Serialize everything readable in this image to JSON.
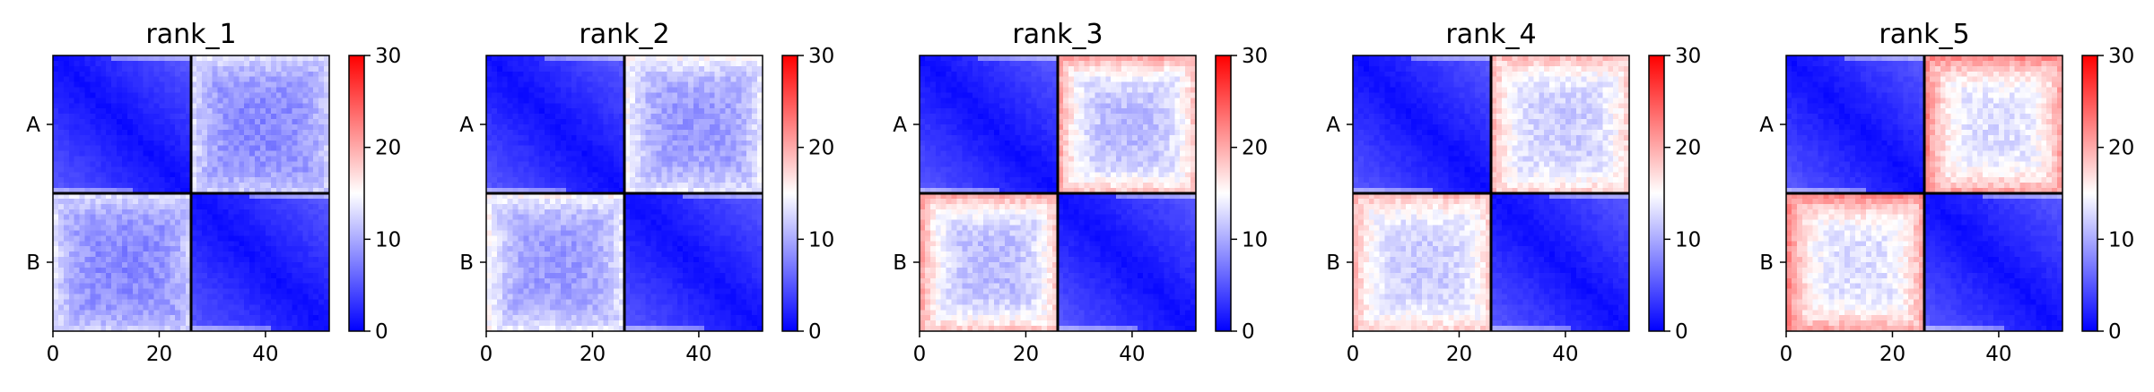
{
  "chart_data": [
    {
      "type": "heatmap",
      "title": "rank_1",
      "x_ticks": [
        0,
        20,
        40
      ],
      "y_ticks": [
        "A",
        "B"
      ],
      "x_range": [
        0,
        52
      ],
      "chain_boundary": 26,
      "colorbar": {
        "min": 0,
        "max": 30,
        "ticks": [
          0,
          10,
          20,
          30
        ],
        "colors": [
          "#0000ff",
          "#ffffff",
          "#ff0000"
        ]
      },
      "mean_intra_chain_error": 3,
      "mean_inter_chain_error": 8,
      "edge_inter_chain_error": 13
    },
    {
      "type": "heatmap",
      "title": "rank_2",
      "x_ticks": [
        0,
        20,
        40
      ],
      "y_ticks": [
        "A",
        "B"
      ],
      "x_range": [
        0,
        52
      ],
      "chain_boundary": 26,
      "colorbar": {
        "min": 0,
        "max": 30,
        "ticks": [
          0,
          10,
          20,
          30
        ],
        "colors": [
          "#0000ff",
          "#ffffff",
          "#ff0000"
        ]
      },
      "mean_intra_chain_error": 3,
      "mean_inter_chain_error": 9,
      "edge_inter_chain_error": 15
    },
    {
      "type": "heatmap",
      "title": "rank_3",
      "x_ticks": [
        0,
        20,
        40
      ],
      "y_ticks": [
        "A",
        "B"
      ],
      "x_range": [
        0,
        52
      ],
      "chain_boundary": 26,
      "colorbar": {
        "min": 0,
        "max": 30,
        "ticks": [
          0,
          10,
          20,
          30
        ],
        "colors": [
          "#0000ff",
          "#ffffff",
          "#ff0000"
        ]
      },
      "mean_intra_chain_error": 3,
      "mean_inter_chain_error": 11,
      "edge_inter_chain_error": 20
    },
    {
      "type": "heatmap",
      "title": "rank_4",
      "x_ticks": [
        0,
        20,
        40
      ],
      "y_ticks": [
        "A",
        "B"
      ],
      "x_range": [
        0,
        52
      ],
      "chain_boundary": 26,
      "colorbar": {
        "min": 0,
        "max": 30,
        "ticks": [
          0,
          10,
          20,
          30
        ],
        "colors": [
          "#0000ff",
          "#ffffff",
          "#ff0000"
        ]
      },
      "mean_intra_chain_error": 3,
      "mean_inter_chain_error": 12,
      "edge_inter_chain_error": 19
    },
    {
      "type": "heatmap",
      "title": "rank_5",
      "x_ticks": [
        0,
        20,
        40
      ],
      "y_ticks": [
        "A",
        "B"
      ],
      "x_range": [
        0,
        52
      ],
      "chain_boundary": 26,
      "colorbar": {
        "min": 0,
        "max": 30,
        "ticks": [
          0,
          10,
          20,
          30
        ],
        "colors": [
          "#0000ff",
          "#ffffff",
          "#ff0000"
        ]
      },
      "mean_intra_chain_error": 3,
      "mean_inter_chain_error": 13,
      "edge_inter_chain_error": 22
    }
  ]
}
